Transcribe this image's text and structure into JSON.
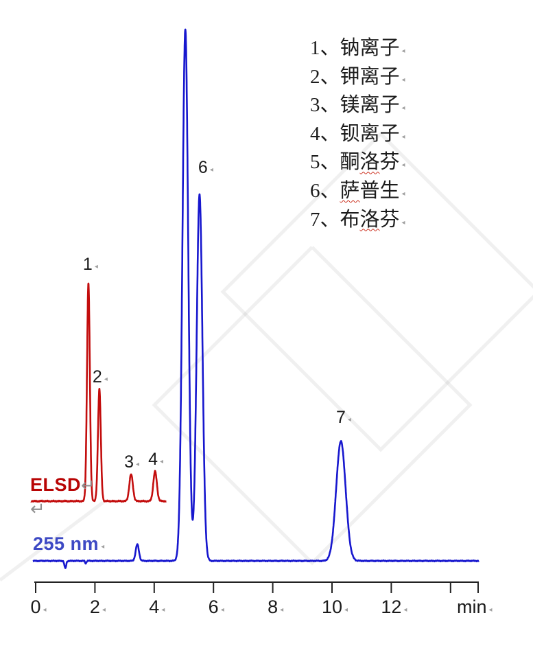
{
  "labels": {
    "elsd": "ELSD",
    "wavelength": "255 nm",
    "axis_unit": "min"
  },
  "marks": {
    "return_arrow": "↵",
    "small_arrow": "◂"
  },
  "colors": {
    "elsd_trace": "#c30d0d",
    "elsd_label": "#b80505",
    "uv_trace": "#1717ce",
    "uv_label": "#3d49c4",
    "axis": "#222222",
    "text": "#1b1b1b",
    "gray_mark": "#8f8f8f",
    "watermark": "rgba(150,150,150,0.14)"
  },
  "legend": {
    "items": [
      {
        "pre": "1、钠离子",
        "wavy": "",
        "post": ""
      },
      {
        "pre": "2、钾离子",
        "wavy": "",
        "post": ""
      },
      {
        "pre": "3、镁离子",
        "wavy": "",
        "post": ""
      },
      {
        "pre": "4、钡离子",
        "wavy": "",
        "post": ""
      },
      {
        "pre": "5、酮",
        "wavy": "洛",
        "post": "芬"
      },
      {
        "pre": "6、",
        "wavy": "萨",
        "post": "普生"
      },
      {
        "pre": "7、布",
        "wavy": "洛",
        "post": "芬"
      }
    ]
  },
  "chart_data": {
    "type": "line",
    "title": "",
    "xlabel": "min",
    "ylabel": "",
    "x_range": [
      0,
      15
    ],
    "x_ticks": [
      0,
      2,
      4,
      6,
      8,
      10,
      12,
      14
    ],
    "x_tick_labels": [
      "0",
      "2",
      "4",
      "6",
      "8",
      "10",
      "12",
      ""
    ],
    "grid": false,
    "legend_position": "upper-right",
    "series": [
      {
        "name": "ELSD",
        "color_key": "elsd_trace",
        "t_start": -0.16,
        "t_end": 4.4,
        "peaks": [
          {
            "t": 1.78,
            "rel_height": 100,
            "sigma": 0.048,
            "label": "1"
          },
          {
            "t": 2.15,
            "rel_height": 51.5,
            "sigma": 0.048,
            "label": "2"
          },
          {
            "t": 3.22,
            "rel_height": 12.3,
            "sigma": 0.06,
            "label": "3"
          },
          {
            "t": 4.03,
            "rel_height": 13.6,
            "sigma": 0.06,
            "label": "4"
          }
        ]
      },
      {
        "name": "255 nm",
        "color_key": "uv_trace",
        "t_start": -0.09,
        "t_end": 14.95,
        "peaks": [
          {
            "t": 1.0,
            "rel_height": -1.4,
            "sigma": 0.03,
            "label": ""
          },
          {
            "t": 1.69,
            "rel_height": -0.5,
            "sigma": 0.02,
            "label": ""
          },
          {
            "t": 3.43,
            "rel_height": 3.1,
            "sigma": 0.055,
            "label": ""
          },
          {
            "t": 5.05,
            "rel_height": 100,
            "sigma": 0.097,
            "label": ""
          },
          {
            "t": 5.53,
            "rel_height": 69,
            "sigma": 0.097,
            "label": "6"
          },
          {
            "t": 10.3,
            "rel_height": 22.5,
            "sigma": 0.16,
            "label": "7"
          }
        ]
      }
    ]
  }
}
